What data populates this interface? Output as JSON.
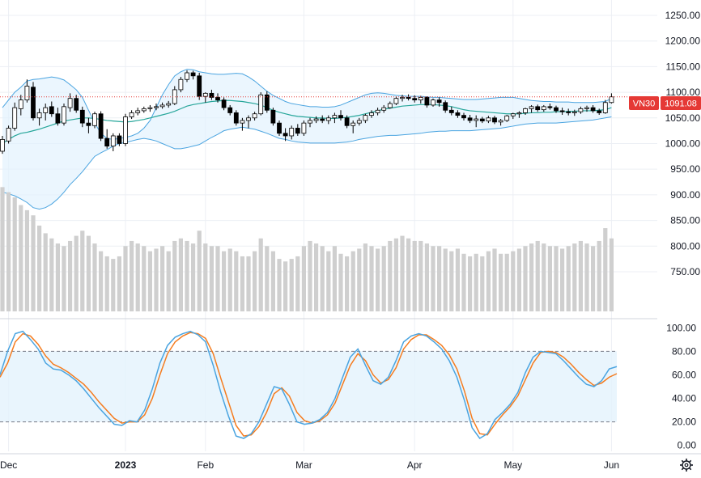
{
  "chart_data": {
    "type": "candlestick",
    "symbol": "VN30",
    "last_price": "1091.08",
    "colors": {
      "up_body": "#ffffff",
      "down_body": "#000000",
      "wick": "#000000",
      "bb_band": "#4aa4e0",
      "bb_basis": "#26a69a",
      "bb_fill": "#e3f2fd",
      "volume": "#cfcfcf",
      "k_line": "#4aa4e0",
      "d_line": "#f57c1f",
      "stoch_fill": "#e3f2fd",
      "price_line": "#e53935",
      "badge_symbol": "#e53935",
      "badge_price": "#e53935",
      "grid": "#eceff4"
    },
    "price_axis": {
      "ylim": [
        660,
        1280
      ],
      "ticks": [
        "1250.00",
        "1200.00",
        "1150.00",
        "1100.00",
        "1050.00",
        "1000.00",
        "950.00",
        "900.00",
        "850.00",
        "800.00",
        "750.00"
      ]
    },
    "oscillator_axis": {
      "ylim": [
        -5,
        105
      ],
      "ticks": [
        "100.00",
        "80.00",
        "60.00",
        "40.00",
        "20.00",
        "0.00"
      ],
      "upper_band": 80,
      "lower_band": 20
    },
    "x_labels": [
      {
        "label": "Dec",
        "bar": 1,
        "bold": false
      },
      {
        "label": "2023",
        "bar": 20,
        "bold": true
      },
      {
        "label": "Feb",
        "bar": 33,
        "bold": false
      },
      {
        "label": "Mar",
        "bar": 49,
        "bold": false
      },
      {
        "label": "Apr",
        "bar": 67,
        "bold": false
      },
      {
        "label": "May",
        "bar": 83,
        "bold": false
      },
      {
        "label": "Jun",
        "bar": 99,
        "bold": false
      }
    ],
    "ohlc": [
      [
        985,
        1015,
        980,
        1008
      ],
      [
        1005,
        1035,
        1000,
        1030
      ],
      [
        1030,
        1080,
        1025,
        1070
      ],
      [
        1068,
        1095,
        1055,
        1085
      ],
      [
        1085,
        1125,
        1080,
        1112
      ],
      [
        1110,
        1120,
        1045,
        1050
      ],
      [
        1050,
        1068,
        1035,
        1060
      ],
      [
        1060,
        1078,
        1045,
        1070
      ],
      [
        1072,
        1082,
        1052,
        1058
      ],
      [
        1058,
        1070,
        1035,
        1040
      ],
      [
        1040,
        1078,
        1035,
        1072
      ],
      [
        1070,
        1098,
        1062,
        1088
      ],
      [
        1088,
        1095,
        1060,
        1065
      ],
      [
        1065,
        1072,
        1032,
        1040
      ],
      [
        1040,
        1050,
        1020,
        1035
      ],
      [
        1035,
        1062,
        1030,
        1058
      ],
      [
        1058,
        1063,
        1005,
        1010
      ],
      [
        1010,
        1028,
        990,
        995
      ],
      [
        995,
        1020,
        985,
        1015
      ],
      [
        1015,
        1020,
        995,
        1000
      ],
      [
        1000,
        1058,
        995,
        1052
      ],
      [
        1052,
        1065,
        1048,
        1060
      ],
      [
        1060,
        1070,
        1055,
        1064
      ],
      [
        1064,
        1072,
        1060,
        1068
      ],
      [
        1068,
        1075,
        1062,
        1070
      ],
      [
        1070,
        1078,
        1065,
        1072
      ],
      [
        1072,
        1080,
        1068,
        1075
      ],
      [
        1075,
        1083,
        1070,
        1078
      ],
      [
        1078,
        1112,
        1075,
        1105
      ],
      [
        1105,
        1130,
        1100,
        1125
      ],
      [
        1125,
        1143,
        1120,
        1138
      ],
      [
        1138,
        1142,
        1125,
        1132
      ],
      [
        1132,
        1138,
        1085,
        1092
      ],
      [
        1092,
        1100,
        1080,
        1098
      ],
      [
        1098,
        1105,
        1085,
        1090
      ],
      [
        1090,
        1098,
        1080,
        1085
      ],
      [
        1085,
        1090,
        1065,
        1070
      ],
      [
        1070,
        1075,
        1055,
        1060
      ],
      [
        1060,
        1065,
        1035,
        1040
      ],
      [
        1040,
        1050,
        1025,
        1045
      ],
      [
        1045,
        1055,
        1030,
        1050
      ],
      [
        1050,
        1062,
        1045,
        1058
      ],
      [
        1058,
        1100,
        1055,
        1095
      ],
      [
        1095,
        1102,
        1060,
        1065
      ],
      [
        1065,
        1070,
        1035,
        1040
      ],
      [
        1040,
        1045,
        1015,
        1020
      ],
      [
        1020,
        1030,
        1005,
        1015
      ],
      [
        1015,
        1035,
        1008,
        1030
      ],
      [
        1030,
        1038,
        1015,
        1020
      ],
      [
        1020,
        1045,
        1015,
        1040
      ],
      [
        1040,
        1050,
        1032,
        1045
      ],
      [
        1045,
        1053,
        1040,
        1048
      ],
      [
        1048,
        1055,
        1040,
        1045
      ],
      [
        1045,
        1055,
        1038,
        1050
      ],
      [
        1050,
        1060,
        1040,
        1055
      ],
      [
        1055,
        1065,
        1045,
        1050
      ],
      [
        1050,
        1055,
        1030,
        1035
      ],
      [
        1035,
        1045,
        1020,
        1040
      ],
      [
        1040,
        1050,
        1035,
        1045
      ],
      [
        1045,
        1058,
        1040,
        1055
      ],
      [
        1055,
        1065,
        1050,
        1060
      ],
      [
        1060,
        1070,
        1055,
        1065
      ],
      [
        1065,
        1075,
        1060,
        1070
      ],
      [
        1070,
        1082,
        1068,
        1078
      ],
      [
        1078,
        1092,
        1075,
        1088
      ],
      [
        1088,
        1095,
        1082,
        1090
      ],
      [
        1090,
        1096,
        1084,
        1088
      ],
      [
        1088,
        1094,
        1080,
        1085
      ],
      [
        1085,
        1093,
        1078,
        1090
      ],
      [
        1090,
        1092,
        1070,
        1075
      ],
      [
        1075,
        1088,
        1072,
        1085
      ],
      [
        1085,
        1090,
        1072,
        1080
      ],
      [
        1080,
        1084,
        1060,
        1065
      ],
      [
        1065,
        1072,
        1055,
        1060
      ],
      [
        1060,
        1065,
        1050,
        1055
      ],
      [
        1055,
        1060,
        1045,
        1050
      ],
      [
        1050,
        1056,
        1040,
        1045
      ],
      [
        1045,
        1055,
        1032,
        1048
      ],
      [
        1048,
        1052,
        1040,
        1044
      ],
      [
        1044,
        1054,
        1040,
        1050
      ],
      [
        1050,
        1054,
        1038,
        1042
      ],
      [
        1042,
        1048,
        1035,
        1045
      ],
      [
        1045,
        1056,
        1042,
        1054
      ],
      [
        1054,
        1060,
        1048,
        1058
      ],
      [
        1058,
        1063,
        1050,
        1060
      ],
      [
        1060,
        1070,
        1056,
        1068
      ],
      [
        1068,
        1075,
        1060,
        1072
      ],
      [
        1072,
        1076,
        1062,
        1066
      ],
      [
        1066,
        1075,
        1062,
        1072
      ],
      [
        1072,
        1078,
        1066,
        1070
      ],
      [
        1070,
        1074,
        1060,
        1064
      ],
      [
        1064,
        1070,
        1056,
        1062
      ],
      [
        1062,
        1068,
        1055,
        1060
      ],
      [
        1060,
        1066,
        1054,
        1062
      ],
      [
        1062,
        1072,
        1058,
        1068
      ],
      [
        1068,
        1074,
        1062,
        1070
      ],
      [
        1070,
        1075,
        1060,
        1064
      ],
      [
        1064,
        1068,
        1056,
        1060
      ],
      [
        1060,
        1085,
        1058,
        1080
      ],
      [
        1080,
        1098,
        1078,
        1091.08
      ]
    ],
    "bb_upper": [
      1070,
      1085,
      1100,
      1110,
      1122,
      1125,
      1126,
      1128,
      1130,
      1128,
      1124,
      1115,
      1105,
      1090,
      1065,
      1040,
      1020,
      1010,
      1008,
      1010,
      1012,
      1015,
      1020,
      1030,
      1045,
      1070,
      1095,
      1115,
      1132,
      1140,
      1145,
      1144,
      1140,
      1138,
      1136,
      1135,
      1135,
      1136,
      1137,
      1136,
      1130,
      1122,
      1112,
      1102,
      1094,
      1088,
      1082,
      1078,
      1076,
      1074,
      1072,
      1072,
      1071,
      1071,
      1072,
      1075,
      1080,
      1085,
      1090,
      1095,
      1098,
      1099,
      1098,
      1096,
      1094,
      1093,
      1092,
      1092,
      1092,
      1091,
      1090,
      1090,
      1089,
      1088,
      1087,
      1086,
      1086,
      1086,
      1087,
      1088,
      1089,
      1090,
      1090,
      1090,
      1088,
      1086,
      1084,
      1083,
      1082,
      1082,
      1081,
      1081,
      1081,
      1080,
      1080,
      1080,
      1080,
      1081,
      1082,
      1088
    ],
    "bb_basis": [
      1000,
      1008,
      1015,
      1020,
      1022,
      1025,
      1028,
      1032,
      1036,
      1040,
      1044,
      1046,
      1048,
      1050,
      1050,
      1049,
      1047,
      1045,
      1044,
      1043,
      1042,
      1043,
      1045,
      1047,
      1050,
      1053,
      1056,
      1059,
      1063,
      1068,
      1073,
      1076,
      1078,
      1080,
      1082,
      1083,
      1084,
      1084,
      1083,
      1082,
      1080,
      1078,
      1075,
      1070,
      1065,
      1061,
      1058,
      1055,
      1053,
      1052,
      1051,
      1050,
      1050,
      1049,
      1049,
      1050,
      1051,
      1053,
      1055,
      1058,
      1061,
      1064,
      1067,
      1069,
      1071,
      1073,
      1074,
      1075,
      1076,
      1076,
      1076,
      1075,
      1074,
      1072,
      1069,
      1066,
      1064,
      1063,
      1062,
      1061,
      1060,
      1059,
      1058,
      1058,
      1058,
      1059,
      1060,
      1060,
      1061,
      1061,
      1062,
      1062,
      1063,
      1063,
      1064,
      1064,
      1064,
      1065,
      1066,
      1070
    ],
    "bb_lower": [
      905,
      902,
      898,
      892,
      885,
      875,
      872,
      875,
      882,
      892,
      905,
      920,
      932,
      945,
      960,
      975,
      982,
      988,
      995,
      1000,
      1002,
      1005,
      1008,
      1010,
      1008,
      1005,
      1000,
      995,
      990,
      990,
      992,
      995,
      998,
      1005,
      1012,
      1018,
      1025,
      1028,
      1030,
      1032,
      1030,
      1028,
      1024,
      1020,
      1015,
      1010,
      1008,
      1005,
      1003,
      1002,
      1001,
      1001,
      1001,
      1001,
      1001,
      1002,
      1003,
      1005,
      1008,
      1010,
      1012,
      1014,
      1015,
      1016,
      1016,
      1017,
      1018,
      1019,
      1020,
      1022,
      1023,
      1024,
      1024,
      1025,
      1025,
      1025,
      1025,
      1026,
      1027,
      1028,
      1029,
      1030,
      1032,
      1034,
      1036,
      1038,
      1039,
      1040,
      1040,
      1040,
      1040,
      1041,
      1042,
      1043,
      1044,
      1045,
      1046,
      1048,
      1050,
      1052
    ],
    "volume": [
      915,
      905,
      895,
      880,
      870,
      860,
      840,
      825,
      815,
      805,
      800,
      810,
      820,
      830,
      820,
      805,
      790,
      780,
      775,
      780,
      800,
      810,
      805,
      800,
      790,
      795,
      800,
      790,
      810,
      815,
      810,
      805,
      830,
      805,
      800,
      800,
      790,
      795,
      790,
      780,
      780,
      790,
      815,
      800,
      790,
      775,
      770,
      775,
      780,
      800,
      810,
      805,
      800,
      790,
      800,
      785,
      780,
      790,
      795,
      805,
      800,
      795,
      800,
      810,
      815,
      820,
      815,
      810,
      810,
      805,
      800,
      800,
      795,
      790,
      795,
      785,
      780,
      785,
      780,
      790,
      795,
      785,
      785,
      790,
      795,
      800,
      805,
      810,
      805,
      800,
      800,
      795,
      800,
      805,
      810,
      805,
      800,
      810,
      835,
      815
    ],
    "stoch_k": [
      60,
      80,
      95,
      97,
      90,
      82,
      70,
      65,
      64,
      60,
      55,
      48,
      40,
      32,
      25,
      18,
      17,
      21,
      20,
      30,
      48,
      70,
      85,
      92,
      95,
      97,
      94,
      88,
      68,
      45,
      25,
      8,
      6,
      10,
      20,
      35,
      50,
      48,
      35,
      20,
      18,
      19,
      22,
      28,
      40,
      58,
      75,
      82,
      68,
      55,
      52,
      58,
      72,
      88,
      93,
      95,
      93,
      88,
      82,
      72,
      58,
      38,
      15,
      6,
      10,
      22,
      28,
      35,
      45,
      62,
      75,
      80,
      79,
      78,
      72,
      65,
      58,
      52,
      50,
      55,
      65,
      67
    ],
    "stoch_d": [
      58,
      70,
      88,
      95,
      93,
      86,
      76,
      69,
      66,
      62,
      57,
      52,
      45,
      37,
      30,
      23,
      19,
      20,
      20,
      26,
      40,
      60,
      78,
      88,
      93,
      96,
      95,
      91,
      78,
      57,
      37,
      17,
      8,
      9,
      16,
      28,
      44,
      49,
      42,
      28,
      21,
      19,
      21,
      26,
      36,
      52,
      68,
      78,
      72,
      60,
      53,
      56,
      66,
      82,
      90,
      94,
      94,
      90,
      85,
      77,
      65,
      46,
      23,
      10,
      9,
      18,
      26,
      33,
      42,
      56,
      70,
      79,
      80,
      79,
      75,
      69,
      62,
      56,
      51,
      53,
      58,
      61
    ]
  }
}
